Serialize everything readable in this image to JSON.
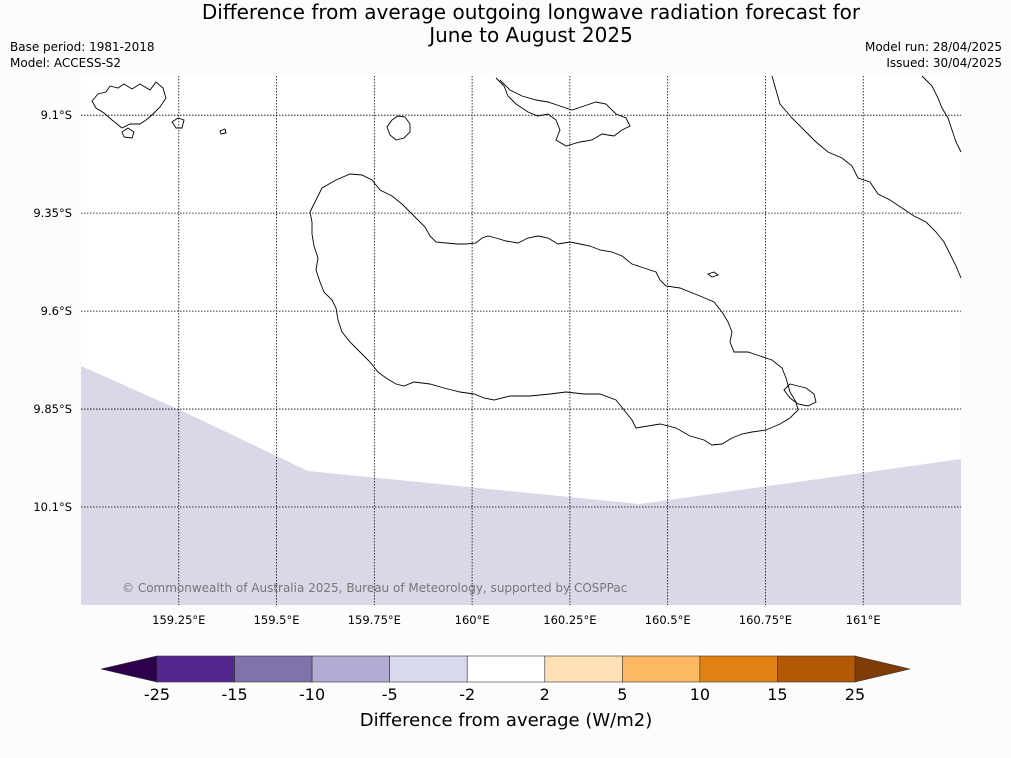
{
  "title": {
    "line1": "Difference from average outgoing longwave radiation forecast for",
    "line2": "June to August 2025"
  },
  "meta": {
    "base_period": "Base period: 1981-2018",
    "model": "Model: ACCESS-S2",
    "model_run": "Model run: 28/04/2025",
    "issued": "Issued: 30/04/2025"
  },
  "map": {
    "copyright": "© Commonwealth of Australia 2025, Bureau of Meteorology, supported by COSPPac",
    "lon_labels": [
      "159.25°E",
      "159.5°E",
      "159.75°E",
      "160°E",
      "160.25°E",
      "160.5°E",
      "160.75°E",
      "161°E"
    ],
    "lat_labels": [
      "9.1°S",
      "9.35°S",
      "9.6°S",
      "9.85°S",
      "10.1°S"
    ],
    "lon_range": [
      159.0,
      161.25
    ],
    "lat_range": [
      -10.35,
      -9.0
    ],
    "fill_color_anomaly": "#d8d8e8",
    "coastline_color": "#000000",
    "grid_style": "dotted"
  },
  "colorbar": {
    "title": "Difference from average (W/m2)",
    "labels": [
      "-25",
      "-15",
      "-10",
      "-5",
      "-2",
      "2",
      "5",
      "10",
      "15",
      "25"
    ],
    "colors": [
      "#54278f",
      "#8073ac",
      "#b2abd2",
      "#d8daeb",
      "#ffffff",
      "#fee0b6",
      "#fdb863",
      "#e08214",
      "#b35806"
    ],
    "extend_low_color": "#2d004b",
    "extend_high_color": "#7f3b08"
  }
}
